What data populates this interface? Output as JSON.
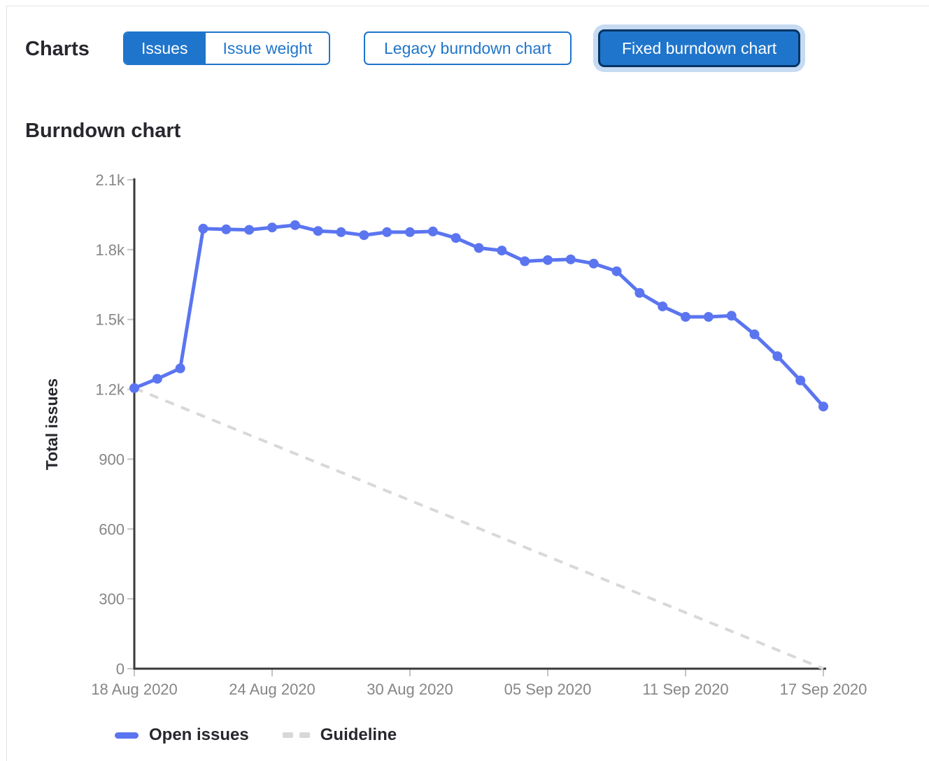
{
  "page": {
    "charts_label": "Charts"
  },
  "toggles": {
    "issue_type": {
      "options": [
        {
          "label": "Issues",
          "selected": true
        },
        {
          "label": "Issue weight",
          "selected": false
        }
      ]
    },
    "chart_version": {
      "options": [
        {
          "label": "Legacy burndown chart",
          "selected": false
        },
        {
          "label": "Fixed burndown chart",
          "selected": true
        }
      ]
    }
  },
  "section": {
    "title": "Burndown chart"
  },
  "legend": {
    "items": [
      {
        "label": "Open issues",
        "swatch": "solid-line"
      },
      {
        "label": "Guideline",
        "swatch": "dashed-line"
      }
    ]
  },
  "colors": {
    "accent_blue": "#1f75cb",
    "selected_border": "#033464",
    "focus_ring": "#c6daf2",
    "series_blue": "#5b75f0",
    "guideline_gray": "#d8d8d8",
    "axis_line": "#3a3a3a",
    "tick_mark": "#c4c4c4",
    "tick_label": "#868686",
    "dark_text": "#28272d"
  },
  "chart_data": {
    "type": "line",
    "title": "Burndown chart",
    "xlabel": "",
    "ylabel": "Total issues",
    "ylim": [
      0,
      2100
    ],
    "grid": false,
    "legend_position": "bottom-left",
    "y_ticks": {
      "values": [
        0,
        300,
        600,
        900,
        1200,
        1500,
        1800,
        2100
      ],
      "labels": [
        "0",
        "300",
        "600",
        "900",
        "1.2k",
        "1.5k",
        "1.8k",
        "2.1k"
      ]
    },
    "x_tick_indices": [
      0,
      6,
      12,
      18,
      24,
      30
    ],
    "x_tick_labels": [
      "18 Aug 2020",
      "24 Aug 2020",
      "30 Aug 2020",
      "05 Sep 2020",
      "11 Sep 2020",
      "17 Sep 2020"
    ],
    "categories": [
      "18 Aug 2020",
      "19 Aug 2020",
      "20 Aug 2020",
      "21 Aug 2020",
      "22 Aug 2020",
      "23 Aug 2020",
      "24 Aug 2020",
      "25 Aug 2020",
      "26 Aug 2020",
      "27 Aug 2020",
      "28 Aug 2020",
      "29 Aug 2020",
      "30 Aug 2020",
      "31 Aug 2020",
      "01 Sep 2020",
      "02 Sep 2020",
      "03 Sep 2020",
      "04 Sep 2020",
      "05 Sep 2020",
      "06 Sep 2020",
      "07 Sep 2020",
      "08 Sep 2020",
      "09 Sep 2020",
      "10 Sep 2020",
      "11 Sep 2020",
      "12 Sep 2020",
      "13 Sep 2020",
      "14 Sep 2020",
      "15 Sep 2020",
      "16 Sep 2020",
      "17 Sep 2020"
    ],
    "series": [
      {
        "name": "Open issues",
        "style": "solid",
        "values": [
          1205,
          1245,
          1290,
          1890,
          1887,
          1885,
          1895,
          1905,
          1880,
          1875,
          1862,
          1875,
          1875,
          1878,
          1850,
          1807,
          1796,
          1750,
          1755,
          1758,
          1740,
          1707,
          1614,
          1556,
          1511,
          1511,
          1516,
          1436,
          1342,
          1238,
          1126
        ]
      },
      {
        "name": "Guideline",
        "style": "dashed",
        "x_indices": [
          0,
          30
        ],
        "values": [
          1205,
          0
        ]
      }
    ]
  }
}
